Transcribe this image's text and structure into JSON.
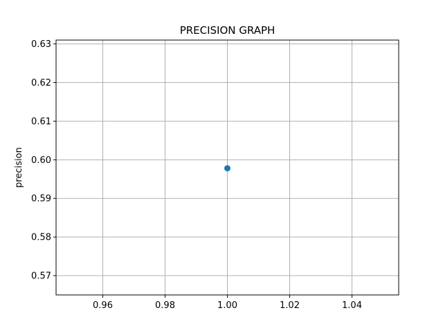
{
  "chart_data": {
    "type": "scatter",
    "title": "PRECISION GRAPH",
    "xlabel": "",
    "ylabel": "precision",
    "xlim": [
      0.945,
      1.055
    ],
    "ylim": [
      0.565,
      0.631
    ],
    "xticks": [
      0.96,
      0.98,
      1.0,
      1.02,
      1.04
    ],
    "xtick_labels": [
      "0.96",
      "0.98",
      "1.00",
      "1.02",
      "1.04"
    ],
    "yticks": [
      0.57,
      0.58,
      0.59,
      0.6,
      0.61,
      0.62,
      0.63
    ],
    "ytick_labels": [
      "0.57",
      "0.58",
      "0.59",
      "0.60",
      "0.61",
      "0.62",
      "0.63"
    ],
    "grid": true,
    "series": [
      {
        "points": [
          {
            "x": 1.0,
            "y": 0.5978
          }
        ],
        "color": "#1f77b4"
      }
    ]
  }
}
